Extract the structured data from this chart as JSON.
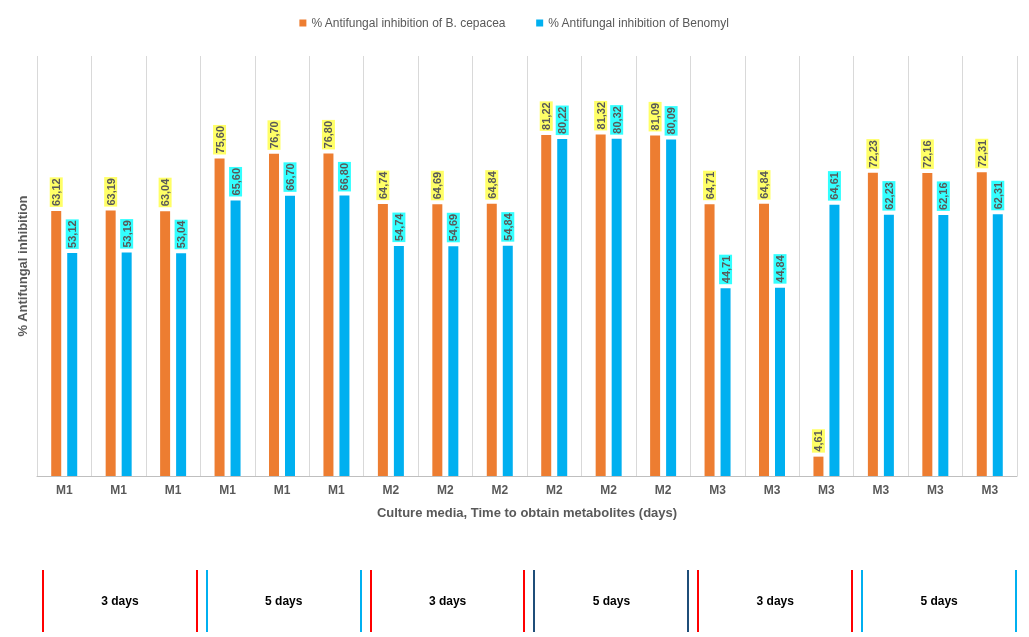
{
  "chart_data": {
    "type": "bar",
    "xlabel": "Culture media, Time to obtain metabolites (days)",
    "ylabel": "% Antifungal inhibition",
    "categories": [
      "M1",
      "M1",
      "M1",
      "M1",
      "M1",
      "M1",
      "M2",
      "M2",
      "M2",
      "M2",
      "M2",
      "M2",
      "M3",
      "M3",
      "M3",
      "M3",
      "M3",
      "M3"
    ],
    "series": [
      {
        "name": "% Antifungal inhibition of B. cepacea",
        "color": "#ed7d31",
        "values": [
          63.12,
          63.19,
          63.04,
          75.6,
          76.7,
          76.8,
          64.74,
          64.69,
          64.84,
          81.22,
          81.32,
          81.09,
          64.71,
          64.84,
          4.61,
          72.23,
          72.16,
          72.31
        ],
        "value_labels": [
          "63,12",
          "63,19",
          "63,04",
          "75,60",
          "76,70",
          "76,80",
          "64,74",
          "64,69",
          "64,84",
          "81,22",
          "81,32",
          "81,09",
          "64,71",
          "64,84",
          "4,61",
          "72,23",
          "72,16",
          "72,31"
        ]
      },
      {
        "name": "% Antifungal inhibition of Benomyl",
        "color": "#00b0f0",
        "values": [
          53.12,
          53.19,
          53.04,
          65.6,
          66.7,
          66.8,
          54.74,
          54.69,
          54.84,
          80.22,
          80.32,
          80.09,
          44.71,
          44.84,
          64.61,
          62.23,
          62.16,
          62.31
        ],
        "value_labels": [
          "53,12",
          "53,19",
          "53,04",
          "65,60",
          "66,70",
          "66,80",
          "54,74",
          "54,69",
          "54,84",
          "80,22",
          "80,32",
          "80,09",
          "44,71",
          "44,84",
          "64,61",
          "62,23",
          "62,16",
          "62,31"
        ]
      }
    ],
    "grid": "x",
    "legend": "top",
    "annotations": [
      "3 days",
      "5 days",
      "3 days",
      "5 days",
      "3 days",
      "5 days"
    ]
  }
}
